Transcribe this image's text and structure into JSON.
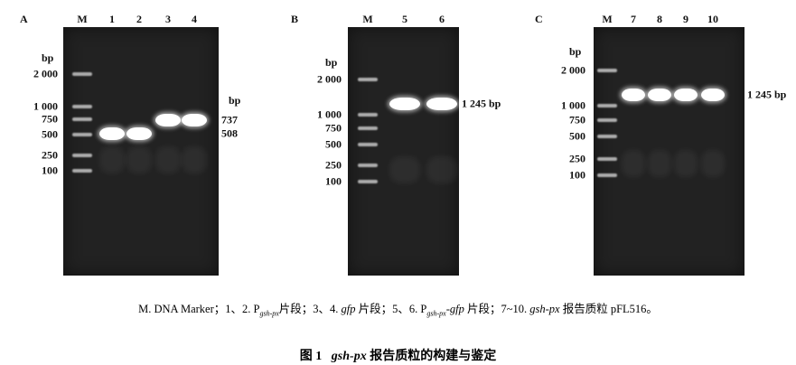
{
  "panels": [
    {
      "id": "A",
      "lanes": [
        "M",
        "1",
        "2",
        "3",
        "4"
      ],
      "unit": "bp",
      "right_unit": "bp",
      "marker": [
        "2 000",
        "1 000",
        "750",
        "500",
        "250",
        "100"
      ],
      "markers_bp": [
        2000,
        1000,
        750,
        500,
        250,
        100
      ],
      "bands": [
        {
          "lanes": [
            1,
            2
          ],
          "bp": 508,
          "label": "508"
        },
        {
          "lanes": [
            3,
            4
          ],
          "bp": 737,
          "label": "737"
        }
      ]
    },
    {
      "id": "B",
      "lanes": [
        "M",
        "5",
        "6"
      ],
      "unit": "bp",
      "marker": [
        "2 000",
        "1 000",
        "750",
        "500",
        "250",
        "100"
      ],
      "markers_bp": [
        2000,
        1000,
        750,
        500,
        250,
        100
      ],
      "bands": [
        {
          "lanes": [
            1,
            2
          ],
          "bp": 1245,
          "label": "1 245 bp"
        }
      ]
    },
    {
      "id": "C",
      "lanes": [
        "M",
        "7",
        "8",
        "9",
        "10"
      ],
      "unit": "bp",
      "marker": [
        "2 000",
        "1 000",
        "750",
        "500",
        "250",
        "100"
      ],
      "markers_bp": [
        2000,
        1000,
        750,
        500,
        250,
        100
      ],
      "bands": [
        {
          "lanes": [
            1,
            2,
            3,
            4
          ],
          "bp": 1245,
          "label": "1 245 bp"
        }
      ]
    }
  ],
  "caption": {
    "m": "M. DNA Marker；1、2. P",
    "s1": "gsh-px",
    "t1": "片段；3、4. ",
    "g1": "gfp",
    "t2": " 片段；5、6. P",
    "s2": "gsh-px",
    "t3": "-",
    "g2": "gfp",
    "t4": " 片段；7~10. ",
    "g3": "gsh-px",
    "t5": " 报告质粒 pFL516。"
  },
  "title": {
    "prefix": "图 1",
    "gene": "gsh-px",
    "rest": " 报告质粒的构建与鉴定"
  }
}
